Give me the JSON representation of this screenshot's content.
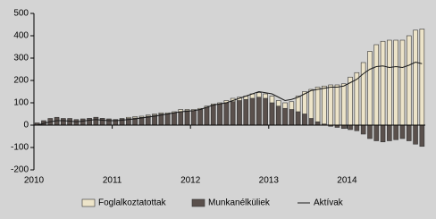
{
  "chart_data": {
    "type": "bar",
    "categories": [
      "2010",
      null,
      null,
      null,
      null,
      null,
      null,
      null,
      null,
      null,
      null,
      null,
      "2011",
      null,
      null,
      null,
      null,
      null,
      null,
      null,
      null,
      null,
      null,
      null,
      "2012",
      null,
      null,
      null,
      null,
      null,
      null,
      null,
      null,
      null,
      null,
      null,
      "2013",
      null,
      null,
      null,
      null,
      null,
      null,
      null,
      null,
      null,
      null,
      null,
      "2014",
      null,
      null,
      null,
      null,
      null,
      null,
      null,
      null,
      null,
      null,
      null
    ],
    "series": [
      {
        "name": "Foglalkoztatottak",
        "type": "bar",
        "color": "#ede4c9",
        "values": [
          5,
          15,
          25,
          30,
          28,
          25,
          20,
          25,
          30,
          35,
          30,
          25,
          25,
          30,
          35,
          38,
          40,
          45,
          50,
          55,
          55,
          60,
          70,
          70,
          70,
          75,
          85,
          95,
          100,
          110,
          120,
          125,
          130,
          140,
          145,
          140,
          130,
          110,
          100,
          105,
          130,
          150,
          160,
          170,
          175,
          180,
          180,
          185,
          215,
          235,
          280,
          330,
          360,
          375,
          380,
          380,
          380,
          400,
          425,
          430
        ]
      },
      {
        "name": "Munkanélküliek",
        "type": "bar",
        "color": "#5a504c",
        "values": [
          10,
          20,
          30,
          35,
          30,
          30,
          25,
          28,
          30,
          35,
          30,
          28,
          25,
          28,
          30,
          32,
          35,
          40,
          45,
          50,
          50,
          55,
          60,
          65,
          65,
          70,
          80,
          90,
          95,
          100,
          105,
          110,
          115,
          120,
          125,
          120,
          100,
          85,
          75,
          70,
          60,
          50,
          30,
          15,
          5,
          -5,
          -10,
          -15,
          -20,
          -25,
          -40,
          -60,
          -70,
          -75,
          -70,
          -65,
          -60,
          -70,
          -85,
          -95
        ]
      },
      {
        "name": "Aktívak",
        "type": "line",
        "color": "#1a1a1a",
        "values": [
          0,
          8,
          15,
          20,
          20,
          18,
          15,
          18,
          22,
          25,
          22,
          20,
          20,
          22,
          25,
          28,
          32,
          36,
          40,
          45,
          50,
          55,
          60,
          62,
          65,
          70,
          80,
          90,
          95,
          100,
          110,
          120,
          130,
          140,
          150,
          145,
          140,
          125,
          110,
          115,
          125,
          140,
          155,
          160,
          165,
          170,
          170,
          175,
          190,
          205,
          230,
          250,
          262,
          265,
          258,
          262,
          258,
          268,
          282,
          275
        ]
      }
    ],
    "ylim": [
      -200,
      500
    ],
    "yticks": [
      -200,
      -100,
      0,
      100,
      200,
      300,
      400,
      500
    ],
    "grid": false
  }
}
